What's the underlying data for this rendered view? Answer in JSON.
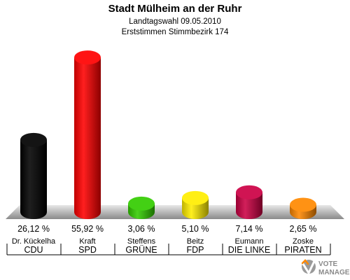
{
  "header": {
    "title": "Stadt Mülheim an der Ruhr",
    "subtitle1": "Landtagswahl 09.05.2010",
    "subtitle2": "Erststimmen Stimmbezirk 174"
  },
  "chart_data": {
    "type": "bar",
    "title": "Stadt Mülheim an der Ruhr",
    "categories": [
      "CDU",
      "SPD",
      "GRÜNE",
      "FDP",
      "DIE LINKE",
      "PIRATEN"
    ],
    "candidates": [
      "Dr. Kückelha",
      "Kraft",
      "Steffens",
      "Beitz",
      "Eumann",
      "Zoske"
    ],
    "values": [
      26.12,
      55.92,
      3.06,
      5.1,
      7.14,
      2.65
    ],
    "value_labels": [
      "26,12 %",
      "55,92 %",
      "3,06 %",
      "5,10 %",
      "7,14 %",
      "2,65 %"
    ],
    "colors": [
      "#000000",
      "#ff0000",
      "#33cc00",
      "#ffee00",
      "#cc0044",
      "#ff8800"
    ],
    "ylim": [
      0,
      60
    ],
    "grid": false,
    "legend": "none"
  },
  "logo": {
    "text1": "VOTE",
    "text2": "MANAGER"
  }
}
